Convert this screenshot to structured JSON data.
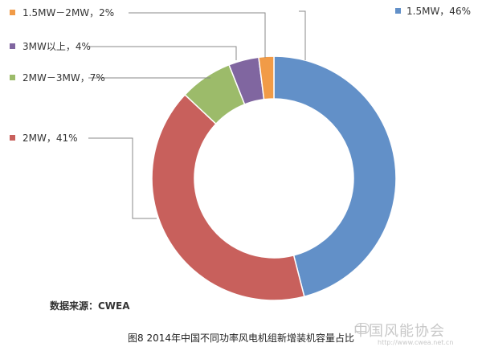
{
  "chart_data": {
    "type": "pie",
    "variant": "donut",
    "slices": [
      {
        "label": "1.5MW",
        "value": 46,
        "color": "#6290c8",
        "text": "1.5MW，46%"
      },
      {
        "label": "2MW",
        "value": 41,
        "color": "#c8605c",
        "text": "2MW，41%"
      },
      {
        "label": "2MW－3MW",
        "value": 7,
        "color": "#9cbb6a",
        "text": "2MW－3MW，7%"
      },
      {
        "label": "3MW以上",
        "value": 4,
        "color": "#8066a0",
        "text": "3MW以上，4%"
      },
      {
        "label": "1.5MW－2MW",
        "value": 2,
        "color": "#f19b47",
        "text": "1.5MW－2MW，2%"
      }
    ],
    "legend": "none",
    "labels": "outside-with-leader-lines"
  },
  "source_text": "数据来源：CWEA",
  "caption": "图8 2014年中国不同功率风电机组新增装机容量占比",
  "watermark": "中国风能协会",
  "watermark_sub": "http://www.cwea.net.cn"
}
